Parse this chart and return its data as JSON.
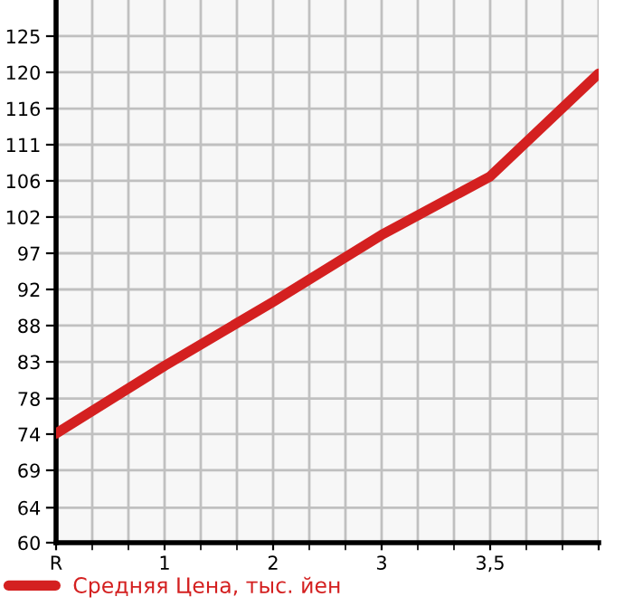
{
  "chart_data": {
    "type": "line",
    "categories": [
      "R",
      "1",
      "2",
      "3",
      "3,5",
      null
    ],
    "series": [
      {
        "name": "Средняя Цена, тыс. йен",
        "color": "#d42020",
        "values": [
          74,
          82.7,
          90.9,
          99.5,
          107,
          120.2
        ]
      }
    ],
    "ylim": [
      60,
      129.64
    ],
    "yticks": [
      60,
      {
        "value": 64.49,
        "label": "64"
      },
      {
        "value": 69.29,
        "label": "69"
      },
      {
        "value": 73.93,
        "label": "74"
      },
      {
        "value": 78.49,
        "label": "78"
      },
      {
        "value": 83.21,
        "label": "83"
      },
      {
        "value": 87.86,
        "label": "88"
      },
      {
        "value": 92.5,
        "label": "92"
      },
      {
        "value": 97.14,
        "label": "97"
      },
      {
        "value": 101.79,
        "label": "102"
      },
      {
        "value": 106.43,
        "label": "106"
      },
      {
        "value": 111.07,
        "label": "111"
      },
      {
        "value": 115.71,
        "label": "116"
      },
      {
        "value": 120.36,
        "label": "120"
      },
      125
    ],
    "grid": true,
    "legend": "bottom left",
    "marker": "none",
    "line_style": "solid"
  }
}
